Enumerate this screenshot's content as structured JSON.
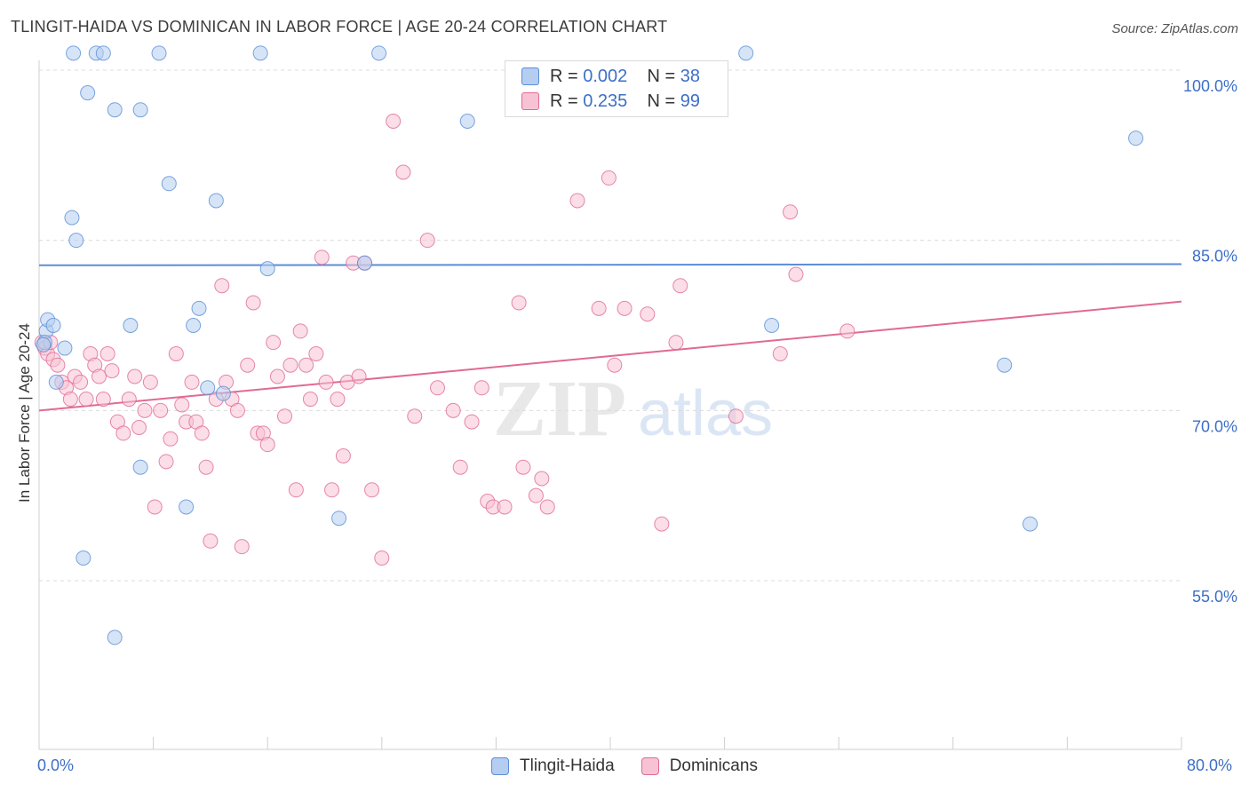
{
  "title": "TLINGIT-HAIDA VS DOMINICAN IN LABOR FORCE | AGE 20-24 CORRELATION CHART",
  "source": "Source: ZipAtlas.com",
  "colors": {
    "blue": "#5b8ed6",
    "blue_fill": "#b5cdf1",
    "pink": "#e06a95",
    "pink_fill": "#f7c3d4",
    "axis_label": "#3d6fc7",
    "grid": "#dcdcdc"
  },
  "legend_box": {
    "rows": [
      {
        "r_label": "R =",
        "r_value": "0.002",
        "n_label": "N =",
        "n_value": "38"
      },
      {
        "r_label": "R =",
        "r_value": "0.235",
        "n_label": "N =",
        "n_value": "99"
      }
    ]
  },
  "bottom_legend": {
    "series1": "Tlingit-Haida",
    "series2": "Dominicans"
  },
  "chart_data": {
    "type": "scatter",
    "title": "TLINGIT-HAIDA VS DOMINICAN IN LABOR FORCE | AGE 20-24 CORRELATION CHART",
    "xlabel": "",
    "ylabel": "In Labor Force | Age 20-24",
    "xlim": [
      0,
      80
    ],
    "ylim": [
      40,
      102
    ],
    "x_tick_labels": {
      "min": "0.0%",
      "max": "80.0%"
    },
    "y_ticks": [
      {
        "value": 100,
        "label": "100.0%"
      },
      {
        "value": 85,
        "label": "85.0%"
      },
      {
        "value": 70,
        "label": "70.0%"
      },
      {
        "value": 55,
        "label": "55.0%"
      }
    ],
    "watermark": {
      "zip": "ZIP",
      "atlas": "atlas"
    },
    "series": [
      {
        "name": "Tlingit-Haida",
        "color": "#5b8ed6",
        "trend": {
          "x": [
            0,
            80
          ],
          "y": [
            82.8,
            82.9
          ]
        },
        "points": [
          [
            0.5,
            77.0
          ],
          [
            0.6,
            78.0
          ],
          [
            1.0,
            77.5
          ],
          [
            1.2,
            72.5
          ],
          [
            1.8,
            75.5
          ],
          [
            2.3,
            87.0
          ],
          [
            2.4,
            101.5
          ],
          [
            2.6,
            85.0
          ],
          [
            3.1,
            57.0
          ],
          [
            3.4,
            98.0
          ],
          [
            4.0,
            101.5
          ],
          [
            4.5,
            101.5
          ],
          [
            5.3,
            96.5
          ],
          [
            5.3,
            50.0
          ],
          [
            6.4,
            77.5
          ],
          [
            7.1,
            96.5
          ],
          [
            7.1,
            65.0
          ],
          [
            8.4,
            101.5
          ],
          [
            9.1,
            90.0
          ],
          [
            10.3,
            61.5
          ],
          [
            10.8,
            77.5
          ],
          [
            11.2,
            79.0
          ],
          [
            11.8,
            72.0
          ],
          [
            12.4,
            88.5
          ],
          [
            12.9,
            71.5
          ],
          [
            15.5,
            101.5
          ],
          [
            16.0,
            82.5
          ],
          [
            21.0,
            60.5
          ],
          [
            22.8,
            83.0
          ],
          [
            23.8,
            101.5
          ],
          [
            30.0,
            95.5
          ],
          [
            49.5,
            101.5
          ],
          [
            51.3,
            77.5
          ],
          [
            67.6,
            74.0
          ],
          [
            69.4,
            60.0
          ],
          [
            76.8,
            94.0
          ],
          [
            0.4,
            76.0
          ],
          [
            0.3,
            75.8
          ]
        ]
      },
      {
        "name": "Dominicans",
        "color": "#e06a95",
        "trend": {
          "x": [
            0,
            80
          ],
          "y": [
            70.0,
            79.6
          ]
        },
        "points": [
          [
            0.2,
            76.0
          ],
          [
            0.4,
            75.5
          ],
          [
            0.6,
            75.0
          ],
          [
            0.8,
            76.0
          ],
          [
            1.0,
            74.5
          ],
          [
            1.3,
            74.0
          ],
          [
            1.6,
            72.5
          ],
          [
            1.9,
            72.0
          ],
          [
            2.2,
            71.0
          ],
          [
            2.5,
            73.0
          ],
          [
            2.9,
            72.5
          ],
          [
            3.3,
            71.0
          ],
          [
            3.6,
            75.0
          ],
          [
            3.9,
            74.0
          ],
          [
            4.2,
            73.0
          ],
          [
            4.5,
            71.0
          ],
          [
            4.8,
            75.0
          ],
          [
            5.1,
            73.5
          ],
          [
            5.5,
            69.0
          ],
          [
            5.9,
            68.0
          ],
          [
            6.3,
            71.0
          ],
          [
            6.7,
            73.0
          ],
          [
            7.0,
            68.5
          ],
          [
            7.4,
            70.0
          ],
          [
            7.8,
            72.5
          ],
          [
            8.1,
            61.5
          ],
          [
            8.5,
            70.0
          ],
          [
            8.9,
            65.5
          ],
          [
            9.2,
            67.5
          ],
          [
            9.6,
            75.0
          ],
          [
            10.0,
            70.5
          ],
          [
            10.3,
            69.0
          ],
          [
            10.7,
            72.5
          ],
          [
            11.0,
            69.0
          ],
          [
            11.4,
            68.0
          ],
          [
            11.7,
            65.0
          ],
          [
            12.0,
            58.5
          ],
          [
            12.4,
            71.0
          ],
          [
            12.8,
            81.0
          ],
          [
            13.1,
            72.5
          ],
          [
            13.5,
            71.0
          ],
          [
            13.9,
            70.0
          ],
          [
            14.2,
            58.0
          ],
          [
            14.6,
            74.0
          ],
          [
            15.0,
            79.5
          ],
          [
            15.3,
            68.0
          ],
          [
            15.7,
            68.0
          ],
          [
            16.0,
            67.0
          ],
          [
            16.4,
            76.0
          ],
          [
            16.7,
            73.0
          ],
          [
            17.2,
            69.5
          ],
          [
            17.6,
            74.0
          ],
          [
            18.0,
            63.0
          ],
          [
            18.3,
            77.0
          ],
          [
            18.7,
            74.0
          ],
          [
            19.0,
            71.0
          ],
          [
            19.4,
            75.0
          ],
          [
            19.8,
            83.5
          ],
          [
            20.1,
            72.5
          ],
          [
            20.5,
            63.0
          ],
          [
            20.9,
            71.0
          ],
          [
            21.3,
            66.0
          ],
          [
            21.6,
            72.5
          ],
          [
            22.0,
            83.0
          ],
          [
            22.4,
            73.0
          ],
          [
            22.8,
            83.0
          ],
          [
            23.3,
            63.0
          ],
          [
            24.0,
            57.0
          ],
          [
            24.8,
            95.5
          ],
          [
            25.5,
            91.0
          ],
          [
            26.3,
            69.5
          ],
          [
            27.2,
            85.0
          ],
          [
            27.9,
            72.0
          ],
          [
            29.0,
            70.0
          ],
          [
            29.5,
            65.0
          ],
          [
            30.3,
            69.0
          ],
          [
            31.0,
            72.0
          ],
          [
            31.4,
            62.0
          ],
          [
            31.8,
            61.5
          ],
          [
            32.6,
            61.5
          ],
          [
            33.6,
            79.5
          ],
          [
            33.9,
            65.0
          ],
          [
            34.8,
            62.5
          ],
          [
            35.2,
            64.0
          ],
          [
            35.6,
            61.5
          ],
          [
            37.7,
            88.5
          ],
          [
            39.2,
            79.0
          ],
          [
            39.9,
            90.5
          ],
          [
            40.3,
            74.0
          ],
          [
            41.0,
            79.0
          ],
          [
            42.6,
            78.5
          ],
          [
            43.6,
            60.0
          ],
          [
            44.6,
            76.0
          ],
          [
            44.9,
            81.0
          ],
          [
            48.8,
            69.5
          ],
          [
            51.9,
            75.0
          ],
          [
            52.6,
            87.5
          ],
          [
            53.0,
            82.0
          ],
          [
            56.6,
            77.0
          ]
        ]
      }
    ]
  }
}
